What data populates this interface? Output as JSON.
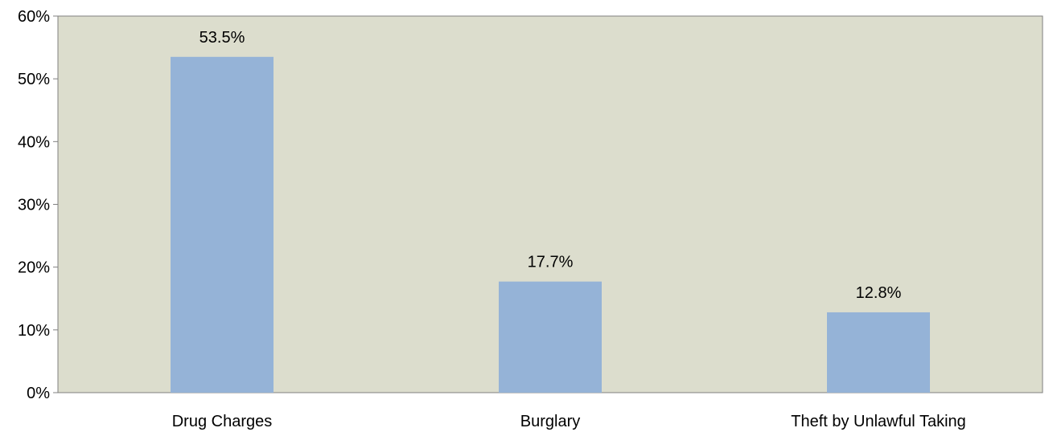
{
  "chart_data": {
    "type": "bar",
    "categories": [
      "Drug Charges",
      "Burglary",
      "Theft by Unlawful Taking"
    ],
    "values": [
      53.5,
      17.7,
      12.8
    ],
    "value_labels": [
      "53.5%",
      "17.7%",
      "12.8%"
    ],
    "y_ticks": [
      0,
      10,
      20,
      30,
      40,
      50,
      60
    ],
    "y_tick_labels": [
      "0%",
      "10%",
      "20%",
      "30%",
      "40%",
      "50%",
      "60%"
    ],
    "ylim": [
      0,
      60
    ],
    "grid": false,
    "legend": "none",
    "colors": {
      "bar": "#95b3d7",
      "plot_background": "#dcddcd",
      "axis": "#808080"
    }
  }
}
